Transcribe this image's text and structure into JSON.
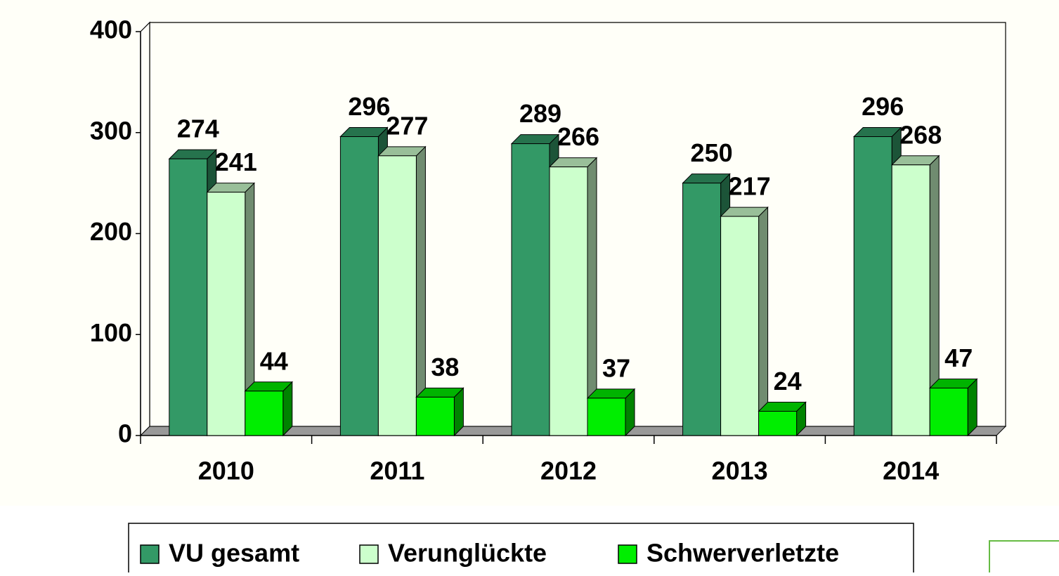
{
  "chart_data": {
    "type": "bar3d",
    "categories": [
      "2010",
      "2011",
      "2012",
      "2013",
      "2014"
    ],
    "series": [
      {
        "name": "VU gesamt",
        "color": "#339966",
        "values": [
          274,
          296,
          289,
          250,
          296
        ]
      },
      {
        "name": "Verunglückte",
        "color": "#ccffcc",
        "values": [
          241,
          277,
          266,
          217,
          268
        ]
      },
      {
        "name": "Schwerverletzte",
        "color": "#00ee00",
        "values": [
          44,
          38,
          37,
          24,
          47
        ]
      }
    ],
    "ylim": [
      0,
      400
    ],
    "yticks": [
      0,
      100,
      200,
      300,
      400
    ]
  }
}
